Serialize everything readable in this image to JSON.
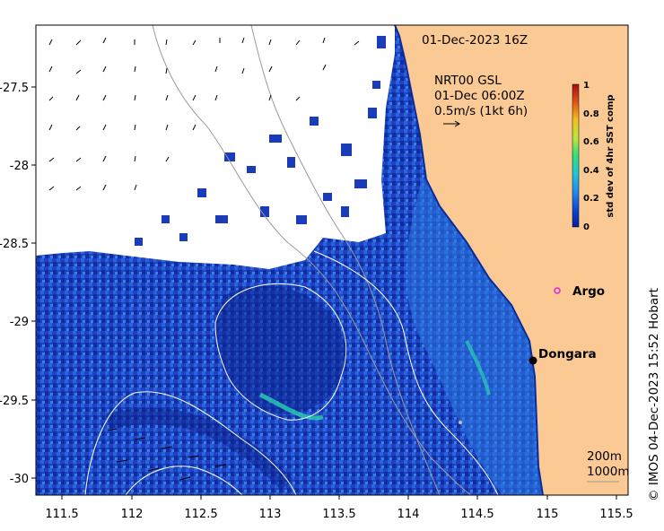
{
  "title": {
    "date": "01-Dec-2023 16Z"
  },
  "annotations": {
    "nrt": "NRT00 GSL",
    "current_time": "01-Dec 06:00Z",
    "vector_scale": "0.5m/s (1kt 6h)"
  },
  "axes": {
    "x_ticks": [
      "111.5",
      "112",
      "112.5",
      "113",
      "113.5",
      "114",
      "114.5",
      "115",
      "115.5"
    ],
    "y_ticks": [
      "-27.5",
      "-28",
      "-28.5",
      "-29",
      "-29.5",
      "-30"
    ]
  },
  "colorbar": {
    "label": "std dev of 4hr SST comp",
    "ticks": [
      "1",
      "0.8",
      "0.6",
      "0.4",
      "0.2",
      "0"
    ],
    "colors": [
      "#0b1aa0",
      "#0a46d8",
      "#1e8ef0",
      "#20c8d8",
      "#2ee07a",
      "#b8e640",
      "#f2c020",
      "#e0501a",
      "#a01010"
    ]
  },
  "places": [
    {
      "name": "Argo",
      "color": "#e020e0"
    },
    {
      "name": "Dongara",
      "color": "#000000"
    }
  ],
  "isobaths": {
    "line1": "200m",
    "line2": "1000m"
  },
  "credit": "© IMOS 04-Dec-2023 15:52 Hobart",
  "palette": {
    "land": "#fbc993",
    "cloud": "#ffffff",
    "ocean_deep": "#0d2aa8",
    "ocean_mid": "#1f4fcf",
    "ocean_bright": "#2a86e8",
    "ocean_high": "#2bc5c0"
  }
}
